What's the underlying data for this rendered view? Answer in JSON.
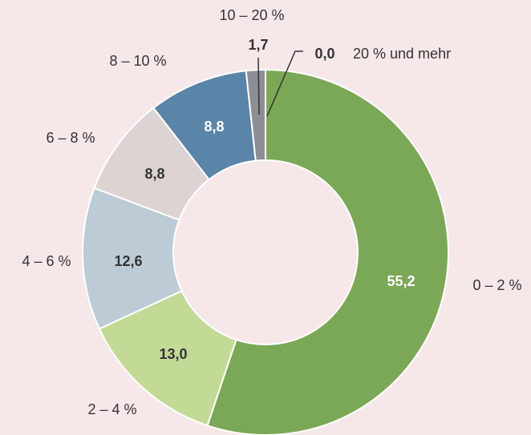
{
  "chart_data": {
    "type": "donut",
    "categories": [
      "0 – 2 %",
      "2 – 4 %",
      "4 – 6 %",
      "6 – 8 %",
      "8 – 10 %",
      "10 – 20 %",
      "20 % und mehr"
    ],
    "values": [
      55.2,
      13.0,
      12.6,
      8.8,
      8.8,
      1.7,
      0.0
    ],
    "value_labels": [
      "55,2",
      "13,0",
      "12,6",
      "8,8",
      "8,8",
      "1,7",
      "0,0"
    ],
    "colors": [
      "#7ba857",
      "#c3d996",
      "#bccbd6",
      "#ddd3d3",
      "#5a84a8",
      "#8e8e96",
      "#6f6f78"
    ]
  }
}
